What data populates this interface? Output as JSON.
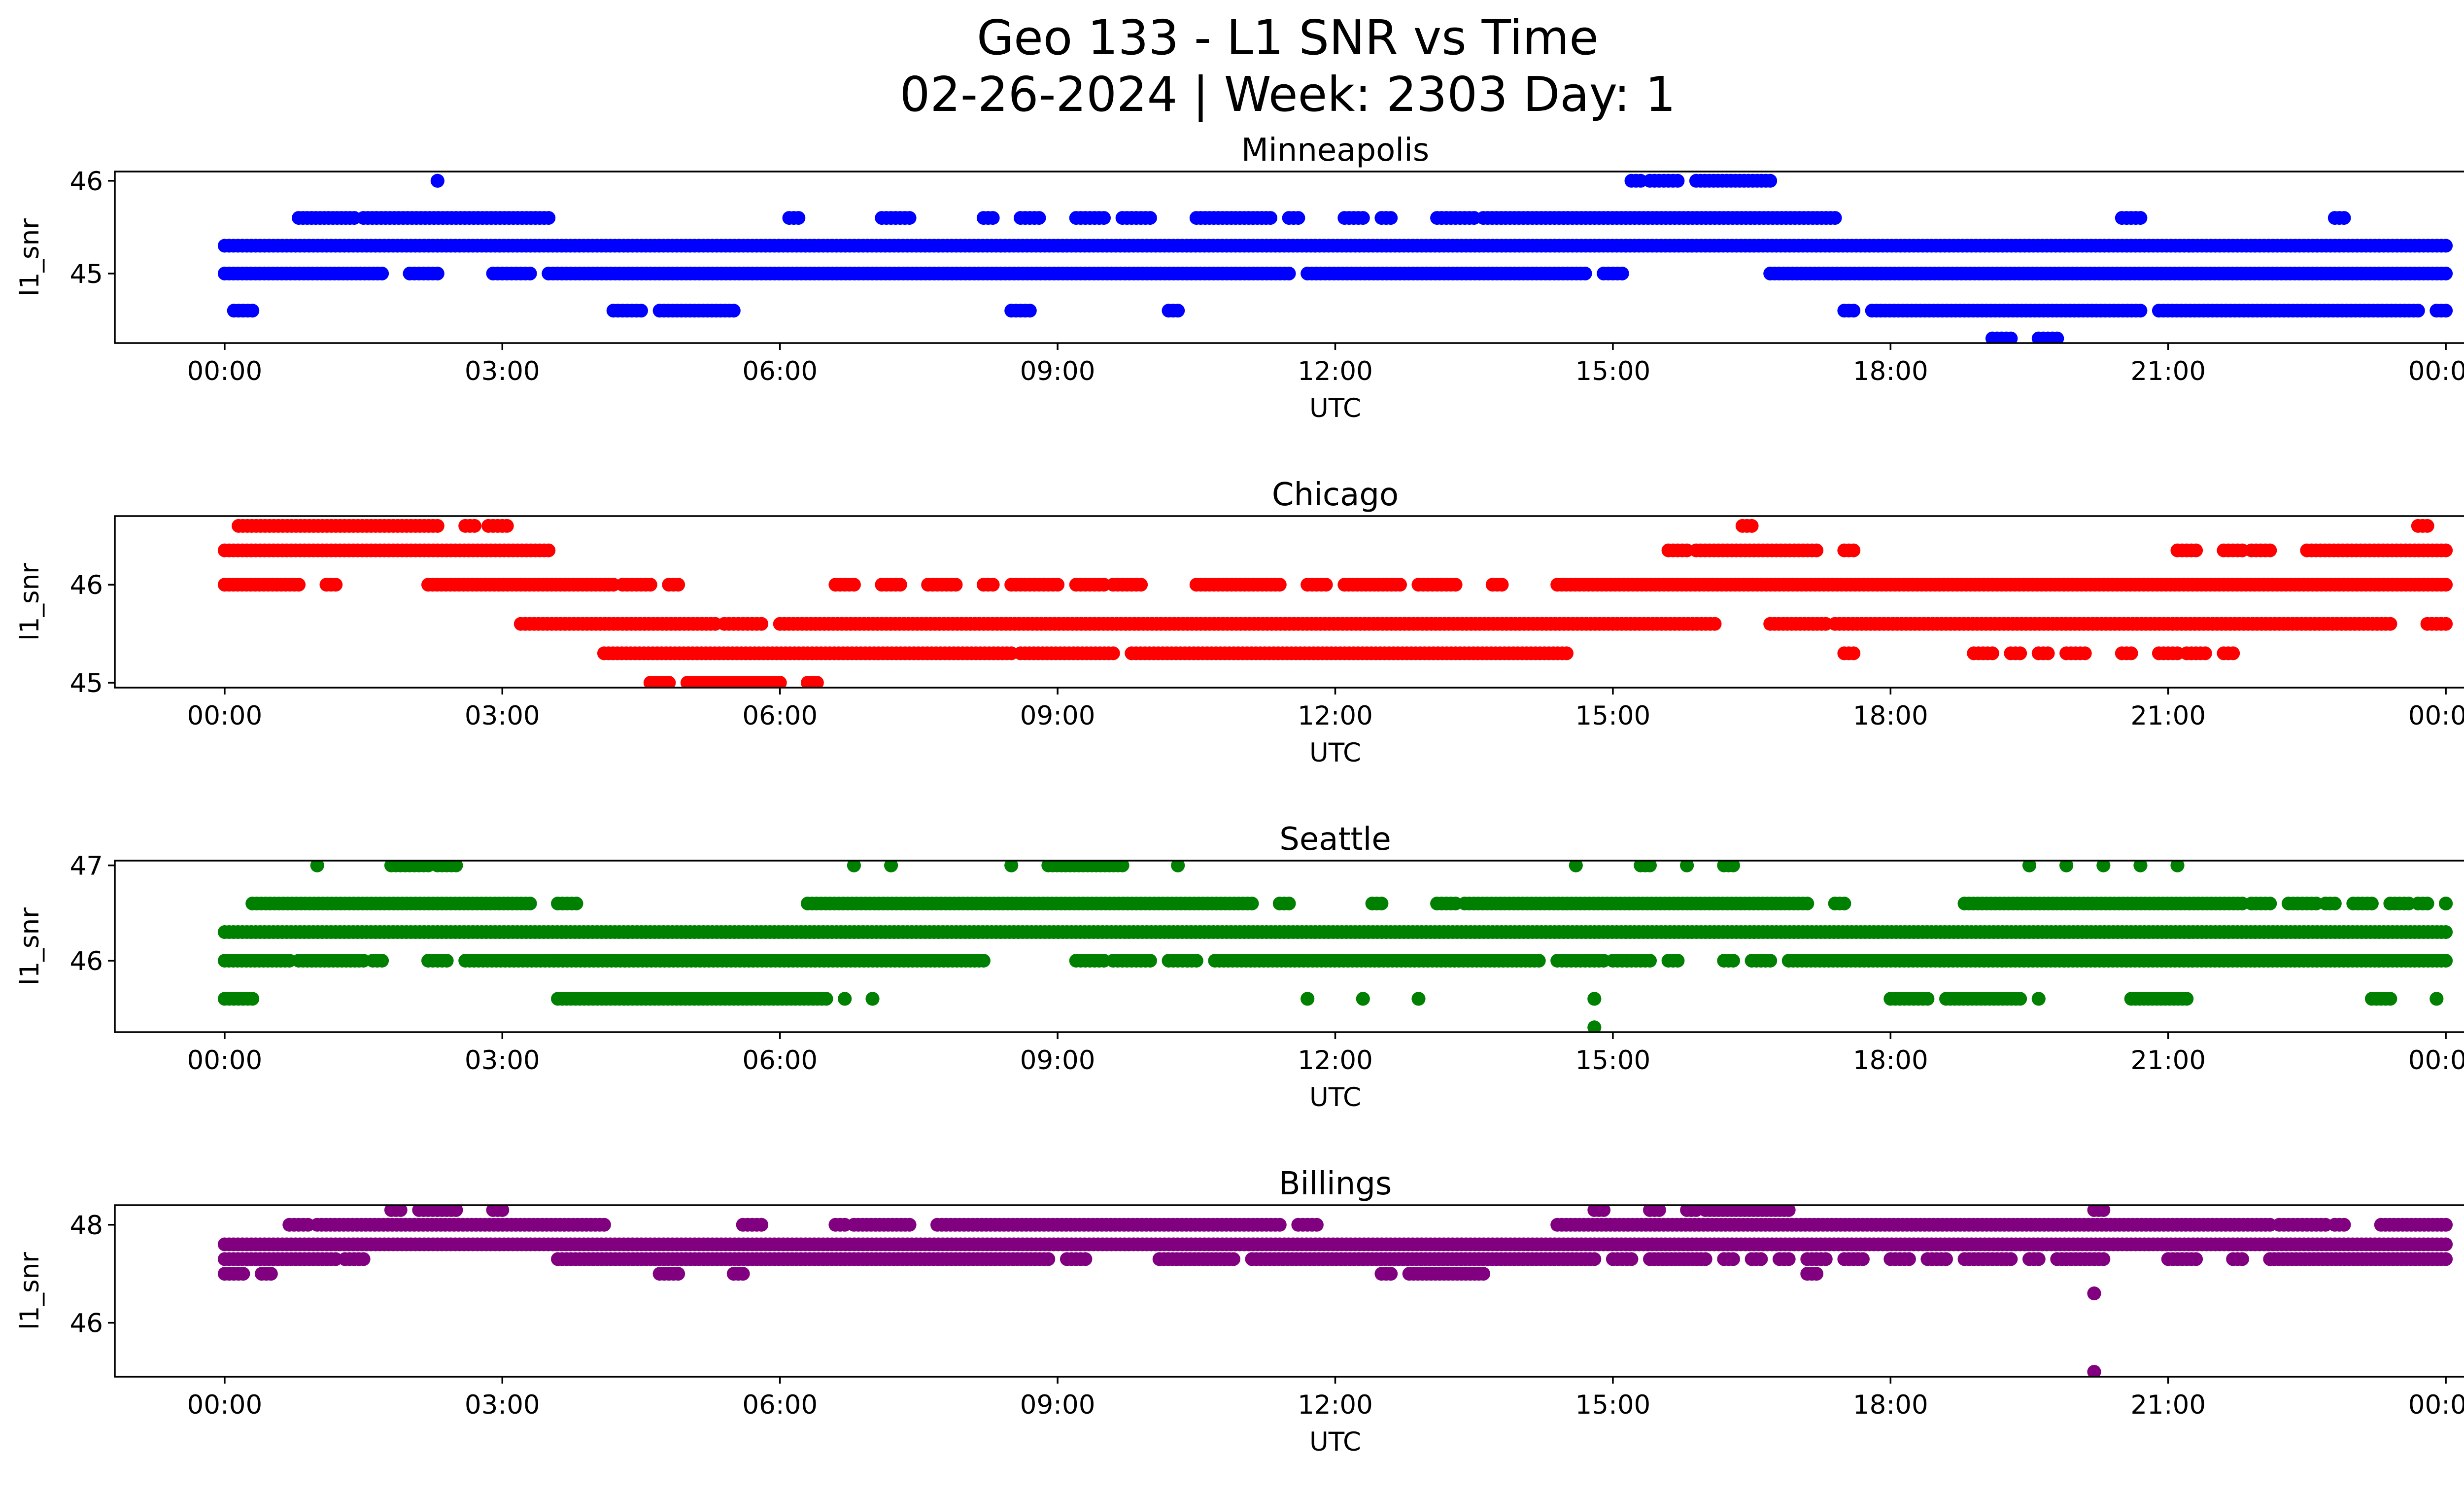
{
  "figure": {
    "title_line1": "Geo 133 - L1 SNR vs Time",
    "title_line2": "02-26-2024 | Week: 2303 Day: 1"
  },
  "chart_data": [
    {
      "type": "scatter",
      "title": "Minneapolis",
      "xlabel": "UTC",
      "ylabel": "l1_snr",
      "color": "#0000ff",
      "xlim": [
        "00:00",
        "24:00"
      ],
      "ylim": [
        44.25,
        46.1
      ],
      "xticks": [
        "00:00",
        "03:00",
        "06:00",
        "09:00",
        "12:00",
        "15:00",
        "18:00",
        "21:00",
        "00:00"
      ],
      "yticks": [
        45,
        46
      ],
      "levels": [
        {
          "y": 45.3,
          "segments": [
            [
              0.0,
              24.0
            ]
          ]
        },
        {
          "y": 45.0,
          "segments": [
            [
              0.0,
              0.95
            ],
            [
              1.0,
              1.7
            ],
            [
              2.0,
              2.3
            ],
            [
              2.9,
              3.3
            ],
            [
              3.5,
              11.5
            ],
            [
              11.7,
              14.7
            ],
            [
              14.9,
              15.1
            ],
            [
              16.7,
              24.0
            ]
          ]
        },
        {
          "y": 45.6,
          "segments": [
            [
              0.8,
              1.4
            ],
            [
              1.5,
              3.5
            ],
            [
              6.1,
              6.2
            ],
            [
              7.1,
              7.4
            ],
            [
              8.2,
              8.3
            ],
            [
              8.6,
              8.8
            ],
            [
              9.2,
              9.5
            ],
            [
              9.7,
              10.0
            ],
            [
              10.5,
              11.3
            ],
            [
              11.5,
              11.6
            ],
            [
              12.1,
              12.3
            ],
            [
              12.5,
              12.6
            ],
            [
              13.1,
              13.5
            ],
            [
              13.6,
              17.4
            ],
            [
              20.5,
              20.7
            ],
            [
              22.8,
              22.9
            ]
          ]
        },
        {
          "y": 44.6,
          "segments": [
            [
              0.1,
              0.3
            ],
            [
              4.2,
              4.5
            ],
            [
              4.7,
              5.5
            ],
            [
              8.5,
              8.7
            ],
            [
              10.2,
              10.3
            ],
            [
              17.5,
              17.6
            ],
            [
              17.8,
              20.7
            ],
            [
              20.9,
              23.7
            ],
            [
              23.9,
              24.0
            ]
          ]
        },
        {
          "y": 44.3,
          "segments": [
            [
              19.1,
              19.3
            ],
            [
              19.6,
              19.8
            ]
          ]
        },
        {
          "y": 46.0,
          "segments": [
            [
              2.3,
              2.3
            ],
            [
              15.2,
              15.3
            ],
            [
              15.4,
              15.7
            ],
            [
              15.9,
              16.7
            ]
          ]
        }
      ]
    },
    {
      "type": "scatter",
      "title": "Chicago",
      "xlabel": "UTC",
      "ylabel": "l1_snr",
      "color": "#ff0000",
      "xlim": [
        "00:00",
        "24:00"
      ],
      "ylim": [
        44.95,
        46.7
      ],
      "xticks": [
        "00:00",
        "03:00",
        "06:00",
        "09:00",
        "12:00",
        "15:00",
        "18:00",
        "21:00",
        "00:00"
      ],
      "yticks": [
        45,
        46
      ],
      "levels": [
        {
          "y": 46.35,
          "segments": [
            [
              0.0,
              3.5
            ]
          ]
        },
        {
          "y": 46.6,
          "segments": [
            [
              0.15,
              2.3
            ],
            [
              2.6,
              2.7
            ],
            [
              2.85,
              3.05
            ],
            [
              16.4,
              16.5
            ],
            [
              23.7,
              23.8
            ]
          ]
        },
        {
          "y": 46.0,
          "segments": [
            [
              0.0,
              0.8
            ],
            [
              1.1,
              1.2
            ],
            [
              2.2,
              4.2
            ],
            [
              4.3,
              4.6
            ],
            [
              4.8,
              4.9
            ],
            [
              6.6,
              6.8
            ],
            [
              7.1,
              7.3
            ],
            [
              7.6,
              7.9
            ],
            [
              8.2,
              8.3
            ],
            [
              8.5,
              9.0
            ],
            [
              9.2,
              9.5
            ],
            [
              9.6,
              9.9
            ],
            [
              10.5,
              11.4
            ],
            [
              11.7,
              11.9
            ],
            [
              12.1,
              12.7
            ],
            [
              12.9,
              13.3
            ],
            [
              13.7,
              13.8
            ],
            [
              14.4,
              24.0
            ]
          ]
        },
        {
          "y": 45.6,
          "segments": [
            [
              3.2,
              5.3
            ],
            [
              5.4,
              5.8
            ],
            [
              6.0,
              16.1
            ],
            [
              16.7,
              17.3
            ],
            [
              17.4,
              23.4
            ],
            [
              23.8,
              24.0
            ]
          ]
        },
        {
          "y": 45.3,
          "segments": [
            [
              4.1,
              8.5
            ],
            [
              8.6,
              9.6
            ],
            [
              9.8,
              14.5
            ],
            [
              17.5,
              17.6
            ],
            [
              18.9,
              19.1
            ],
            [
              19.3,
              19.4
            ],
            [
              19.6,
              19.7
            ],
            [
              19.9,
              20.1
            ],
            [
              20.5,
              20.6
            ],
            [
              20.9,
              21.1
            ],
            [
              21.2,
              21.4
            ],
            [
              21.6,
              21.7
            ]
          ]
        },
        {
          "y": 45.0,
          "segments": [
            [
              4.6,
              4.8
            ],
            [
              5.0,
              6.0
            ],
            [
              6.3,
              6.4
            ]
          ]
        },
        {
          "y": 46.35,
          "segments": [
            [
              15.6,
              15.8
            ],
            [
              15.9,
              17.2
            ],
            [
              17.5,
              17.6
            ],
            [
              21.1,
              21.3
            ],
            [
              21.6,
              21.8
            ],
            [
              21.9,
              22.1
            ],
            [
              22.5,
              24.0
            ]
          ]
        }
      ]
    },
    {
      "type": "scatter",
      "title": "Seattle",
      "xlabel": "UTC",
      "ylabel": "l1_snr",
      "color": "#008000",
      "xlim": [
        "00:00",
        "24:00"
      ],
      "ylim": [
        45.25,
        47.05
      ],
      "xticks": [
        "00:00",
        "03:00",
        "06:00",
        "09:00",
        "12:00",
        "15:00",
        "18:00",
        "21:00",
        "00:00"
      ],
      "yticks": [
        46,
        47
      ],
      "levels": [
        {
          "y": 46.3,
          "segments": [
            [
              0.0,
              24.0
            ]
          ]
        },
        {
          "y": 46.0,
          "segments": [
            [
              0.0,
              0.7
            ],
            [
              0.8,
              1.5
            ],
            [
              1.6,
              1.7
            ],
            [
              2.2,
              2.4
            ],
            [
              2.6,
              8.2
            ],
            [
              9.2,
              9.5
            ],
            [
              9.6,
              10.0
            ],
            [
              10.2,
              10.5
            ],
            [
              10.7,
              14.2
            ],
            [
              14.4,
              14.9
            ],
            [
              15.0,
              15.4
            ],
            [
              15.6,
              15.7
            ],
            [
              16.2,
              16.3
            ],
            [
              16.5,
              16.7
            ],
            [
              16.9,
              24.0
            ]
          ]
        },
        {
          "y": 46.6,
          "segments": [
            [
              0.3,
              3.3
            ],
            [
              3.6,
              3.8
            ],
            [
              6.3,
              11.1
            ],
            [
              11.4,
              11.5
            ],
            [
              12.4,
              12.5
            ],
            [
              13.1,
              13.3
            ],
            [
              13.4,
              17.1
            ],
            [
              17.4,
              17.5
            ],
            [
              18.8,
              21.8
            ],
            [
              21.9,
              22.1
            ],
            [
              22.3,
              22.6
            ],
            [
              22.7,
              22.8
            ],
            [
              23.0,
              23.2
            ],
            [
              23.4,
              23.6
            ],
            [
              23.7,
              23.8
            ],
            [
              24.0,
              24.0
            ]
          ]
        },
        {
          "y": 47.0,
          "segments": [
            [
              1.0,
              1.0
            ],
            [
              1.8,
              2.2
            ],
            [
              2.3,
              2.5
            ],
            [
              6.8,
              6.8
            ],
            [
              7.2,
              7.2
            ],
            [
              8.5,
              8.5
            ],
            [
              8.9,
              9.7
            ],
            [
              10.3,
              10.3
            ],
            [
              14.6,
              14.6
            ],
            [
              15.3,
              15.4
            ],
            [
              15.8,
              15.8
            ],
            [
              16.2,
              16.3
            ],
            [
              19.5,
              19.5
            ],
            [
              19.9,
              19.9
            ],
            [
              20.3,
              20.3
            ],
            [
              20.7,
              20.7
            ],
            [
              21.1,
              21.1
            ]
          ]
        },
        {
          "y": 45.6,
          "segments": [
            [
              0.0,
              0.3
            ],
            [
              3.6,
              6.5
            ],
            [
              6.7,
              6.7
            ],
            [
              7.0,
              7.0
            ],
            [
              11.7,
              11.7
            ],
            [
              12.3,
              12.3
            ],
            [
              12.9,
              12.9
            ],
            [
              14.8,
              14.8
            ],
            [
              18.0,
              18.4
            ],
            [
              18.6,
              19.4
            ],
            [
              19.6,
              19.6
            ],
            [
              20.6,
              21.2
            ],
            [
              23.2,
              23.4
            ],
            [
              23.9,
              23.9
            ]
          ]
        },
        {
          "y": 45.3,
          "segments": [
            [
              14.8,
              14.8
            ]
          ]
        }
      ]
    },
    {
      "type": "scatter",
      "title": "Billings",
      "xlabel": "UTC",
      "ylabel": "l1_snr",
      "color": "#800080",
      "xlim": [
        "00:00",
        "24:00"
      ],
      "ylim": [
        44.9,
        48.4
      ],
      "xticks": [
        "00:00",
        "03:00",
        "06:00",
        "09:00",
        "12:00",
        "15:00",
        "18:00",
        "21:00",
        "00:00"
      ],
      "yticks": [
        46,
        48
      ],
      "levels": [
        {
          "y": 47.6,
          "segments": [
            [
              0.0,
              24.0
            ]
          ]
        },
        {
          "y": 47.3,
          "segments": [
            [
              0.0,
              1.2
            ],
            [
              1.3,
              1.5
            ],
            [
              3.6,
              8.9
            ],
            [
              9.1,
              9.3
            ],
            [
              10.1,
              10.9
            ],
            [
              11.1,
              14.8
            ],
            [
              15.0,
              15.2
            ],
            [
              15.4,
              16.0
            ],
            [
              16.2,
              16.3
            ],
            [
              16.5,
              16.6
            ],
            [
              16.8,
              16.9
            ],
            [
              17.1,
              17.3
            ],
            [
              17.5,
              17.7
            ],
            [
              18.0,
              18.2
            ],
            [
              18.4,
              18.6
            ],
            [
              18.8,
              19.3
            ],
            [
              19.5,
              19.6
            ],
            [
              19.8,
              20.3
            ],
            [
              21.0,
              21.3
            ],
            [
              21.7,
              21.8
            ],
            [
              22.1,
              24.0
            ]
          ]
        },
        {
          "y": 47.0,
          "segments": [
            [
              0.0,
              0.2
            ],
            [
              0.4,
              0.5
            ],
            [
              4.7,
              4.9
            ],
            [
              5.5,
              5.6
            ],
            [
              12.5,
              12.6
            ],
            [
              12.8,
              13.6
            ],
            [
              17.1,
              17.2
            ]
          ]
        },
        {
          "y": 48.0,
          "segments": [
            [
              0.7,
              0.9
            ],
            [
              1.0,
              4.1
            ],
            [
              5.6,
              5.8
            ],
            [
              6.6,
              6.7
            ],
            [
              6.8,
              7.4
            ],
            [
              7.7,
              11.4
            ],
            [
              11.6,
              11.8
            ],
            [
              14.4,
              22.1
            ],
            [
              22.2,
              22.7
            ],
            [
              22.8,
              22.9
            ],
            [
              23.3,
              24.0
            ]
          ]
        },
        {
          "y": 48.3,
          "segments": [
            [
              1.8,
              1.9
            ],
            [
              2.1,
              2.5
            ],
            [
              2.9,
              3.0
            ],
            [
              14.8,
              14.9
            ],
            [
              15.4,
              15.5
            ],
            [
              15.8,
              15.9
            ],
            [
              16.0,
              16.9
            ],
            [
              20.2,
              20.3
            ]
          ]
        },
        {
          "y": 46.6,
          "segments": [
            [
              20.2,
              20.2
            ]
          ]
        },
        {
          "y": 45.0,
          "segments": [
            [
              20.2,
              20.2
            ]
          ]
        }
      ]
    }
  ]
}
